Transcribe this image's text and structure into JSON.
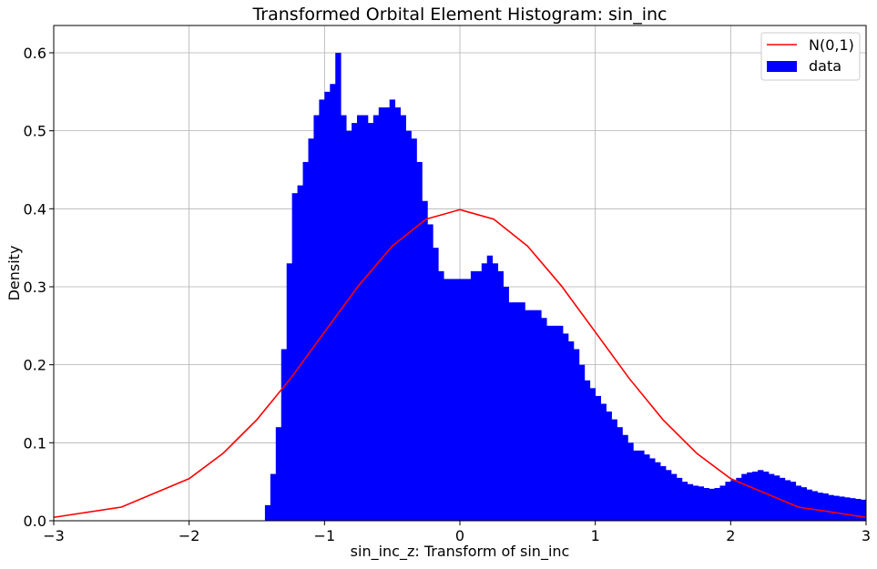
{
  "chart_data": {
    "type": "bar",
    "title": "Transformed Orbital Element Histogram: sin_inc",
    "xlabel": "sin_inc_z: Transform of sin_inc",
    "ylabel": "Density",
    "xlim": [
      -3,
      3
    ],
    "ylim": [
      0,
      0.635
    ],
    "xticks": [
      -3,
      -2,
      -1,
      0,
      1,
      2,
      3
    ],
    "yticks": [
      0.0,
      0.1,
      0.2,
      0.3,
      0.4,
      0.5,
      0.6
    ],
    "grid": true,
    "legend_position": "top-right",
    "legend": [
      "N(0,1)",
      "data"
    ],
    "colors": {
      "data": "#0000ff",
      "normal_curve": "#ff0000",
      "grid": "#b0b0b0"
    },
    "series": [
      {
        "name": "data",
        "kind": "histogram",
        "x": [
          -1.42,
          -1.38,
          -1.34,
          -1.3,
          -1.26,
          -1.22,
          -1.18,
          -1.14,
          -1.1,
          -1.06,
          -1.02,
          -0.98,
          -0.94,
          -0.9,
          -0.86,
          -0.82,
          -0.78,
          -0.74,
          -0.7,
          -0.66,
          -0.62,
          -0.58,
          -0.54,
          -0.5,
          -0.46,
          -0.42,
          -0.38,
          -0.34,
          -0.3,
          -0.26,
          -0.22,
          -0.18,
          -0.14,
          -0.1,
          -0.06,
          -0.02,
          0.02,
          0.06,
          0.1,
          0.14,
          0.18,
          0.22,
          0.26,
          0.3,
          0.34,
          0.38,
          0.42,
          0.46,
          0.5,
          0.54,
          0.58,
          0.62,
          0.66,
          0.7,
          0.74,
          0.78,
          0.82,
          0.86,
          0.9,
          0.94,
          0.98,
          1.02,
          1.06,
          1.1,
          1.14,
          1.18,
          1.22,
          1.26,
          1.3,
          1.34,
          1.38,
          1.42,
          1.46,
          1.5,
          1.54,
          1.58,
          1.62,
          1.66,
          1.7,
          1.74,
          1.78,
          1.82,
          1.86,
          1.9,
          1.94,
          1.98,
          2.02,
          2.06,
          2.1,
          2.14,
          2.18,
          2.22,
          2.26,
          2.3,
          2.34,
          2.38,
          2.42,
          2.46,
          2.5,
          2.54,
          2.58,
          2.62,
          2.66,
          2.7,
          2.74,
          2.78,
          2.82,
          2.86,
          2.9,
          2.94,
          2.98
        ],
        "values": [
          0.02,
          0.06,
          0.12,
          0.22,
          0.33,
          0.42,
          0.43,
          0.46,
          0.49,
          0.52,
          0.54,
          0.55,
          0.56,
          0.6,
          0.52,
          0.5,
          0.51,
          0.52,
          0.52,
          0.51,
          0.52,
          0.53,
          0.53,
          0.54,
          0.53,
          0.52,
          0.5,
          0.49,
          0.46,
          0.41,
          0.38,
          0.35,
          0.32,
          0.31,
          0.31,
          0.31,
          0.31,
          0.31,
          0.32,
          0.32,
          0.33,
          0.34,
          0.33,
          0.32,
          0.3,
          0.28,
          0.28,
          0.28,
          0.27,
          0.27,
          0.27,
          0.26,
          0.25,
          0.25,
          0.25,
          0.24,
          0.23,
          0.22,
          0.2,
          0.18,
          0.17,
          0.16,
          0.15,
          0.14,
          0.13,
          0.12,
          0.11,
          0.1,
          0.09,
          0.09,
          0.085,
          0.08,
          0.075,
          0.07,
          0.065,
          0.06,
          0.055,
          0.05,
          0.047,
          0.045,
          0.044,
          0.042,
          0.041,
          0.042,
          0.045,
          0.05,
          0.052,
          0.055,
          0.06,
          0.062,
          0.063,
          0.065,
          0.063,
          0.06,
          0.058,
          0.055,
          0.052,
          0.05,
          0.045,
          0.043,
          0.04,
          0.038,
          0.036,
          0.035,
          0.033,
          0.032,
          0.031,
          0.03,
          0.029,
          0.028,
          0.027
        ]
      },
      {
        "name": "N(0,1)",
        "kind": "line",
        "x": [
          -3.0,
          -2.5,
          -2.0,
          -1.75,
          -1.5,
          -1.25,
          -1.0,
          -0.75,
          -0.5,
          -0.25,
          0.0,
          0.25,
          0.5,
          0.75,
          1.0,
          1.25,
          1.5,
          1.75,
          2.0,
          2.5,
          3.0
        ],
        "values": [
          0.0044,
          0.0175,
          0.054,
          0.0863,
          0.1295,
          0.1826,
          0.242,
          0.3011,
          0.3521,
          0.3867,
          0.3989,
          0.3867,
          0.3521,
          0.3011,
          0.242,
          0.1826,
          0.1295,
          0.0863,
          0.054,
          0.0175,
          0.0044
        ]
      }
    ]
  }
}
